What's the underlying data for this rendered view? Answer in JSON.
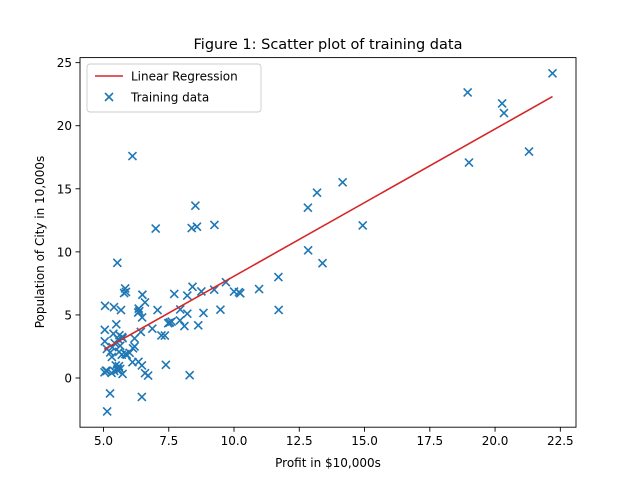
{
  "chart_data": {
    "type": "scatter",
    "title": "Figure 1: Scatter plot of training data",
    "xlabel": "Profit in $10,000s",
    "ylabel": "Population of City in 10,000s",
    "xlim": [
      4.1,
      23.1
    ],
    "ylim": [
      -3.9,
      25.4
    ],
    "xticks": [
      5.0,
      7.5,
      10.0,
      12.5,
      15.0,
      17.5,
      20.0,
      22.5
    ],
    "xtick_labels": [
      "5.0",
      "7.5",
      "10.0",
      "12.5",
      "15.0",
      "17.5",
      "20.0",
      "22.5"
    ],
    "yticks": [
      0,
      5,
      10,
      15,
      20,
      25
    ],
    "ytick_labels": [
      "0",
      "5",
      "10",
      "15",
      "20",
      "25"
    ],
    "grid": false,
    "legend": {
      "placement": "top-left",
      "entries": [
        "Linear Regression",
        "Training data"
      ]
    },
    "series": [
      {
        "name": "Training data",
        "kind": "scatter",
        "marker": "x",
        "color": "#1f77b4",
        "x": [
          6.11,
          5.53,
          8.52,
          7.0,
          5.86,
          8.38,
          7.48,
          8.58,
          6.49,
          5.05,
          5.71,
          14.16,
          5.73,
          8.41,
          5.64,
          5.38,
          6.37,
          5.13,
          6.43,
          7.07,
          6.19,
          20.27,
          5.49,
          6.33,
          5.56,
          18.95,
          12.83,
          10.96,
          13.18,
          22.2,
          5.25,
          6.59,
          9.25,
          5.89,
          8.21,
          7.93,
          8.1,
          5.61,
          12.84,
          6.35,
          5.41,
          6.87,
          5.67,
          5.34,
          5.79,
          7.39,
          8.21,
          7.94,
          5.73,
          6.19,
          5.53,
          5.06,
          6.71,
          5.32,
          5.43,
          5.14,
          5.84,
          6.13,
          6.11,
          5.59,
          5.54,
          6.47,
          8.83,
          9.48,
          7.35,
          5.83,
          7.71,
          7.61,
          6.34,
          8.63,
          8.75,
          6.59,
          5.64,
          6.48,
          5.09,
          7.22,
          10.24,
          5.4,
          5.6,
          7.54,
          6.47,
          5.04,
          8.3,
          5.31,
          5.47,
          5.26,
          13.39,
          9.69,
          14.93,
          11.7,
          5.13,
          10.19,
          11.71,
          6.0,
          5.05,
          20.34,
          21.3,
          19.0,
          9.24,
          10.0,
          5.7
        ],
        "y": [
          17.59,
          9.13,
          13.66,
          11.85,
          6.82,
          11.89,
          4.35,
          12.0,
          6.6,
          3.82,
          3.25,
          15.51,
          3.16,
          7.23,
          0.72,
          3.51,
          5.3,
          0.56,
          3.65,
          5.39,
          3.14,
          21.77,
          4.26,
          5.19,
          3.08,
          22.64,
          13.5,
          7.05,
          14.69,
          24.15,
          -1.22,
          5.99,
          12.13,
          1.85,
          6.54,
          4.56,
          4.12,
          3.39,
          10.12,
          5.5,
          0.56,
          3.91,
          5.39,
          2.44,
          6.73,
          1.05,
          5.1,
          5.44,
          0.32,
          2.5,
          0.63,
          5.72,
          0.19,
          1.67,
          2.76,
          -2.65,
          1.9,
          2.35,
          1.25,
          0.94,
          0.7,
          1.0,
          5.16,
          5.42,
          3.36,
          7.1,
          6.66,
          4.47,
          1.28,
          4.18,
          6.86,
          0.38,
          2.55,
          4.8,
          0.58,
          3.37,
          6.71,
          5.61,
          2.08,
          4.4,
          -1.5,
          0.45,
          0.22,
          0.4,
          1.0,
          2.03,
          9.1,
          7.6,
          12.09,
          8.0,
          2.3,
          6.8,
          5.4,
          2.0,
          2.91,
          21.0,
          17.95,
          17.08,
          7.0,
          6.85,
          1.85
        ]
      },
      {
        "name": "Linear Regression",
        "kind": "line",
        "color": "#d62728",
        "x": [
          5.03,
          22.2
        ],
        "y": [
          2.27,
          22.31
        ]
      }
    ]
  }
}
